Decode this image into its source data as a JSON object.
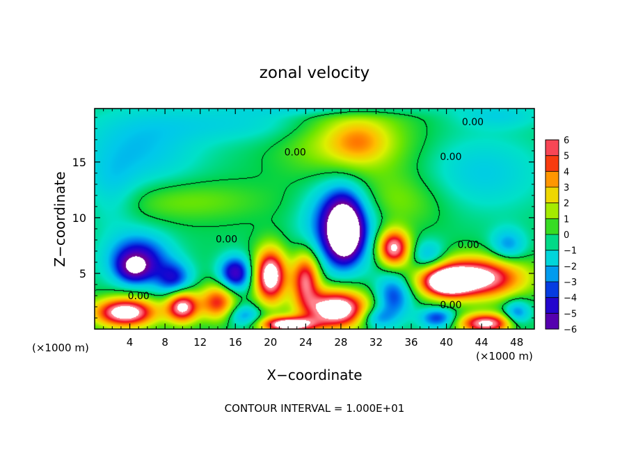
{
  "chart_data": {
    "type": "heatmap",
    "title": "zonal velocity",
    "xlabel": "X−coordinate",
    "ylabel": "Z−coordinate",
    "x_unit_label": "(×1000 m)",
    "x_unit_label_right": "(×1000 m)",
    "footer": "CONTOUR INTERVAL = 1.000E+01",
    "xlim": [
      0,
      50
    ],
    "ylim": [
      0,
      19.8
    ],
    "x_ticks": [
      4,
      8,
      12,
      16,
      20,
      24,
      28,
      32,
      36,
      40,
      44,
      48
    ],
    "x_tick_labels": [
      "4",
      "8",
      "12",
      "16",
      "20",
      "24",
      "28",
      "32",
      "36",
      "40",
      "44",
      "48"
    ],
    "y_ticks": [
      5,
      10,
      15
    ],
    "y_tick_labels": [
      "5",
      "10",
      "15"
    ],
    "colorbar": {
      "range": [
        -6,
        6
      ],
      "tick_values": [
        6,
        5,
        4,
        3,
        2,
        1,
        0,
        -1,
        -2,
        -3,
        -4,
        -5,
        -6
      ],
      "tick_labels": [
        "6",
        "5",
        "4",
        "3",
        "2",
        "1",
        "0",
        "−1",
        "−2",
        "−3",
        "−4",
        "−5",
        "−6"
      ]
    },
    "field": {
      "background": -0.2,
      "features": [
        {
          "x": 29,
          "z": 17,
          "rx": 7,
          "rz": 3.5,
          "v": 2.6
        },
        {
          "x": 30,
          "z": 16.8,
          "rx": 3,
          "rz": 1.8,
          "v": 1.8
        },
        {
          "x": 17,
          "z": 18.5,
          "rx": 12,
          "rz": 1.8,
          "v": -1.3
        },
        {
          "x": 28,
          "z": 19.8,
          "rx": 10,
          "rz": 0.7,
          "v": -1.5
        },
        {
          "x": 46,
          "z": 19.2,
          "rx": 5,
          "rz": 1.2,
          "v": -1.3
        },
        {
          "x": 5,
          "z": 16,
          "rx": 7,
          "rz": 3.5,
          "v": -1.8
        },
        {
          "x": 2,
          "z": 12,
          "rx": 3,
          "rz": 3,
          "v": -1.3
        },
        {
          "x": 44,
          "z": 14,
          "rx": 7,
          "rz": 3.5,
          "v": -1.6
        },
        {
          "x": 10,
          "z": 11.5,
          "rx": 9,
          "rz": 1.8,
          "v": 1.3
        },
        {
          "x": 34,
          "z": 11.5,
          "rx": 6,
          "rz": 2.5,
          "v": 1.4
        },
        {
          "x": 28,
          "z": 9.5,
          "rx": 3.8,
          "rz": 3.8,
          "v": -4.5
        },
        {
          "x": 28.3,
          "z": 9,
          "rx": 2,
          "rz": 2.8,
          "v": -5.2
        },
        {
          "x": 28.5,
          "z": 8.5,
          "rx": 1.4,
          "rz": 1.8,
          "v": -4.5
        },
        {
          "x": 5,
          "z": 6.3,
          "rx": 3.5,
          "rz": 2.2,
          "v": -4.5
        },
        {
          "x": 4.5,
          "z": 5.5,
          "rx": 1.8,
          "rz": 1.2,
          "v": -3.5
        },
        {
          "x": 9,
          "z": 4.5,
          "rx": 2,
          "rz": 1.5,
          "v": -3.5
        },
        {
          "x": 16,
          "z": 5,
          "rx": 1.8,
          "rz": 1.5,
          "v": -5
        },
        {
          "x": 20,
          "z": 4.8,
          "rx": 1.8,
          "rz": 2.4,
          "v": 8
        },
        {
          "x": 24,
          "z": 4.5,
          "rx": 1.6,
          "rz": 2.4,
          "v": 6
        },
        {
          "x": 34,
          "z": 7.3,
          "rx": 1.8,
          "rz": 1.6,
          "v": 7
        },
        {
          "x": 34,
          "z": 3,
          "rx": 2,
          "rz": 2,
          "v": -3.5
        },
        {
          "x": 38,
          "z": 6.5,
          "rx": 2,
          "rz": 1.4,
          "v": -2.5
        },
        {
          "x": 43,
          "z": 4.6,
          "rx": 5.5,
          "rz": 1.8,
          "v": 8
        },
        {
          "x": 40,
          "z": 4.2,
          "rx": 2.5,
          "rz": 1.2,
          "v": 6
        },
        {
          "x": 47,
          "z": 7.5,
          "rx": 2,
          "rz": 1.5,
          "v": -2.5
        },
        {
          "x": 3.5,
          "z": 1.5,
          "rx": 3.5,
          "rz": 1.3,
          "v": 8
        },
        {
          "x": 10,
          "z": 2,
          "rx": 1.8,
          "rz": 1.4,
          "v": 7
        },
        {
          "x": 14,
          "z": 2.4,
          "rx": 2,
          "rz": 1.6,
          "v": 5
        },
        {
          "x": 27.5,
          "z": 1.8,
          "rx": 3.5,
          "rz": 1.7,
          "v": 8.5
        },
        {
          "x": 22,
          "z": 0.4,
          "rx": 3,
          "rz": 0.7,
          "v": 8
        },
        {
          "x": 44.5,
          "z": 0.5,
          "rx": 3,
          "rz": 0.9,
          "v": 7
        },
        {
          "x": 39,
          "z": 1,
          "rx": 2,
          "rz": 0.9,
          "v": -3.5
        },
        {
          "x": 48,
          "z": 1.4,
          "rx": 1.5,
          "rz": 1.2,
          "v": -3
        },
        {
          "x": 17,
          "z": 1.2,
          "rx": 2,
          "rz": 1,
          "v": -2.5
        },
        {
          "x": 32,
          "z": 1,
          "rx": 2,
          "rz": 1,
          "v": -2.5
        }
      ]
    },
    "contours": [
      {
        "level": 0,
        "label": "0.00",
        "label_at": [
          43,
          18.6
        ]
      },
      {
        "level": 0,
        "label": "0.00",
        "label_at": [
          22.8,
          15.9
        ]
      },
      {
        "level": 0,
        "label": "0.00",
        "label_at": [
          40.5,
          15.5
        ]
      },
      {
        "level": 0,
        "label": "0.00",
        "label_at": [
          15,
          8.1
        ]
      },
      {
        "level": 0,
        "label": "0.00",
        "label_at": [
          42.5,
          7.6
        ]
      },
      {
        "level": 0,
        "label": "0.00",
        "label_at": [
          5,
          3
        ]
      },
      {
        "level": 0,
        "label": "0.00",
        "label_at": [
          40.5,
          2.2
        ]
      }
    ]
  }
}
